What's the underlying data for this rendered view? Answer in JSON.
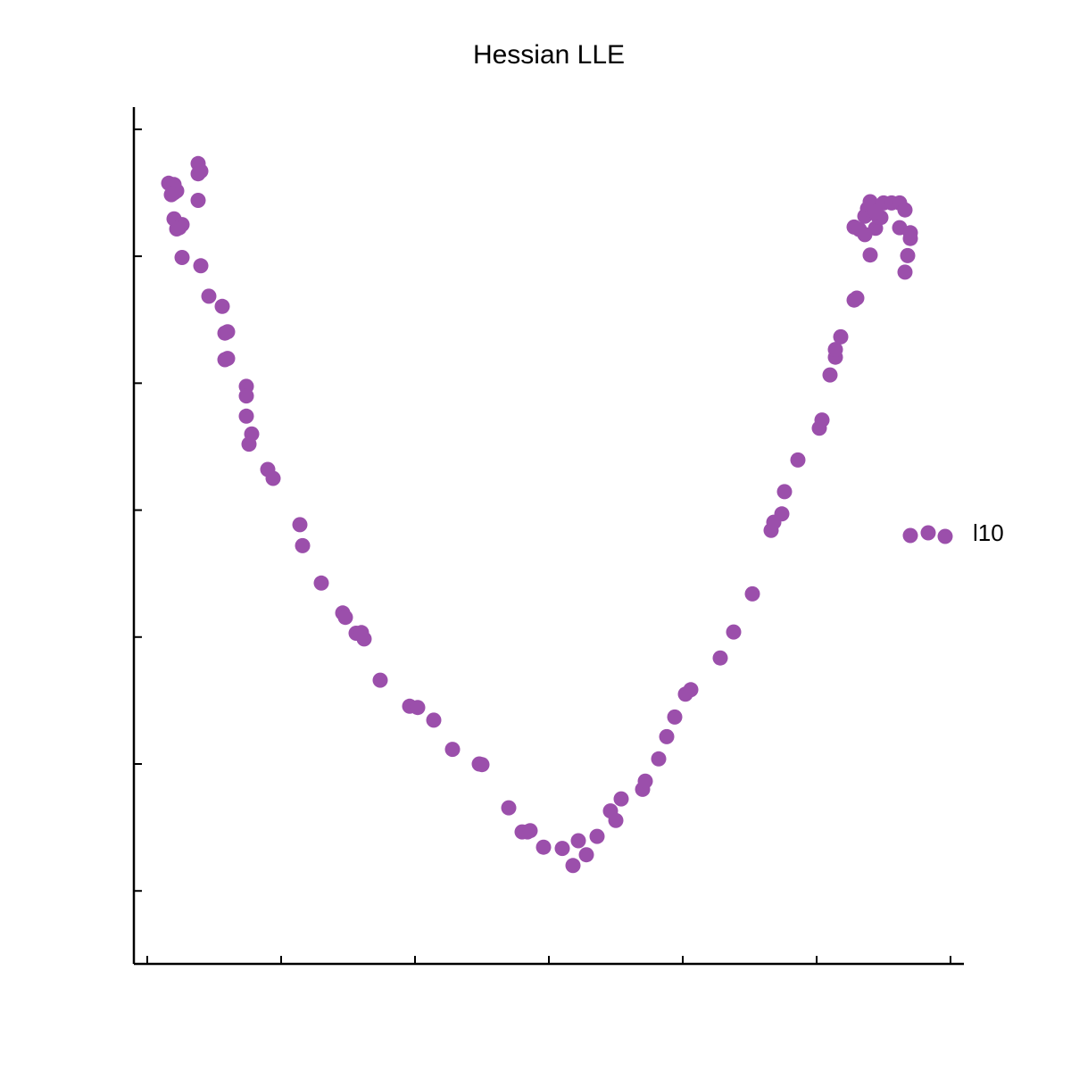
{
  "chart_data": {
    "type": "scatter",
    "title": "Hessian LLE",
    "xlabel": "",
    "ylabel": "",
    "xlim": [
      -0.155,
      0.155
    ],
    "ylim": [
      -0.04,
      0.095
    ],
    "x_ticks": [
      -0.15,
      -0.1,
      -0.05,
      0.0,
      0.05,
      0.1,
      0.15
    ],
    "y_ticks": [
      -0.0285,
      -0.0085,
      0.0115,
      0.0315,
      0.0515,
      0.0715,
      0.0915
    ],
    "tick_labels_shown": false,
    "grid": false,
    "legend": "right",
    "marker_color": "#9b4fab",
    "series": [
      {
        "name": "l10",
        "points": [
          [
            -0.142,
            0.083
          ],
          [
            -0.14,
            0.0828
          ],
          [
            -0.14,
            0.0815
          ],
          [
            -0.139,
            0.0818
          ],
          [
            -0.141,
            0.0812
          ],
          [
            -0.131,
            0.0861
          ],
          [
            -0.13,
            0.0849
          ],
          [
            -0.131,
            0.0845
          ],
          [
            -0.131,
            0.0803
          ],
          [
            -0.14,
            0.0774
          ],
          [
            -0.137,
            0.0765
          ],
          [
            -0.138,
            0.076
          ],
          [
            -0.139,
            0.0758
          ],
          [
            -0.137,
            0.0713
          ],
          [
            -0.13,
            0.07
          ],
          [
            -0.127,
            0.0652
          ],
          [
            -0.122,
            0.0636
          ],
          [
            -0.121,
            0.0594
          ],
          [
            -0.12,
            0.0596
          ],
          [
            -0.121,
            0.0552
          ],
          [
            -0.12,
            0.0554
          ],
          [
            -0.113,
            0.051
          ],
          [
            -0.113,
            0.0495
          ],
          [
            -0.113,
            0.0463
          ],
          [
            -0.111,
            0.0435
          ],
          [
            -0.112,
            0.0419
          ],
          [
            -0.105,
            0.0379
          ],
          [
            -0.103,
            0.0365
          ],
          [
            -0.093,
            0.0292
          ],
          [
            -0.092,
            0.0259
          ],
          [
            -0.085,
            0.02
          ],
          [
            -0.077,
            0.0153
          ],
          [
            -0.076,
            0.0146
          ],
          [
            -0.072,
            0.0121
          ],
          [
            -0.07,
            0.0122
          ],
          [
            -0.069,
            0.0112
          ],
          [
            -0.063,
            0.0047
          ],
          [
            -0.052,
            0.0006
          ],
          [
            -0.049,
            0.0004
          ],
          [
            -0.043,
            -0.0016
          ],
          [
            -0.036,
            -0.0062
          ],
          [
            -0.026,
            -0.0085
          ],
          [
            -0.025,
            -0.0086
          ],
          [
            -0.015,
            -0.0154
          ],
          [
            -0.01,
            -0.0192
          ],
          [
            -0.008,
            -0.0192
          ],
          [
            -0.007,
            -0.019
          ],
          [
            -0.002,
            -0.0216
          ],
          [
            0.005,
            -0.0218
          ],
          [
            0.009,
            -0.0245
          ],
          [
            0.011,
            -0.0206
          ],
          [
            0.014,
            -0.0228
          ],
          [
            0.018,
            -0.0199
          ],
          [
            0.023,
            -0.0159
          ],
          [
            0.025,
            -0.0174
          ],
          [
            0.027,
            -0.014
          ],
          [
            0.035,
            -0.0125
          ],
          [
            0.036,
            -0.0112
          ],
          [
            0.041,
            -0.0077
          ],
          [
            0.044,
            -0.0042
          ],
          [
            0.047,
            -0.0011
          ],
          [
            0.051,
            0.0025
          ],
          [
            0.053,
            0.0032
          ],
          [
            0.064,
            0.0082
          ],
          [
            0.069,
            0.0123
          ],
          [
            0.076,
            0.0183
          ],
          [
            0.083,
            0.0283
          ],
          [
            0.084,
            0.0296
          ],
          [
            0.087,
            0.0309
          ],
          [
            0.088,
            0.0344
          ],
          [
            0.093,
            0.0394
          ],
          [
            0.101,
            0.0444
          ],
          [
            0.102,
            0.0457
          ],
          [
            0.105,
            0.0528
          ],
          [
            0.107,
            0.0556
          ],
          [
            0.107,
            0.0568
          ],
          [
            0.109,
            0.0588
          ],
          [
            0.114,
            0.0646
          ],
          [
            0.115,
            0.0649
          ],
          [
            0.12,
            0.0717
          ],
          [
            0.122,
            0.0759
          ],
          [
            0.123,
            0.0777
          ],
          [
            0.124,
            0.0776
          ],
          [
            0.114,
            0.0761
          ],
          [
            0.116,
            0.0757
          ],
          [
            0.118,
            0.0749
          ],
          [
            0.118,
            0.0778
          ],
          [
            0.119,
            0.079
          ],
          [
            0.12,
            0.0801
          ],
          [
            0.121,
            0.0787
          ],
          [
            0.122,
            0.0785
          ],
          [
            0.125,
            0.0799
          ],
          [
            0.128,
            0.0799
          ],
          [
            0.131,
            0.0799
          ],
          [
            0.133,
            0.0788
          ],
          [
            0.131,
            0.076
          ],
          [
            0.135,
            0.0752
          ],
          [
            0.135,
            0.0743
          ],
          [
            0.134,
            0.0716
          ],
          [
            0.133,
            0.069
          ]
        ]
      }
    ]
  }
}
